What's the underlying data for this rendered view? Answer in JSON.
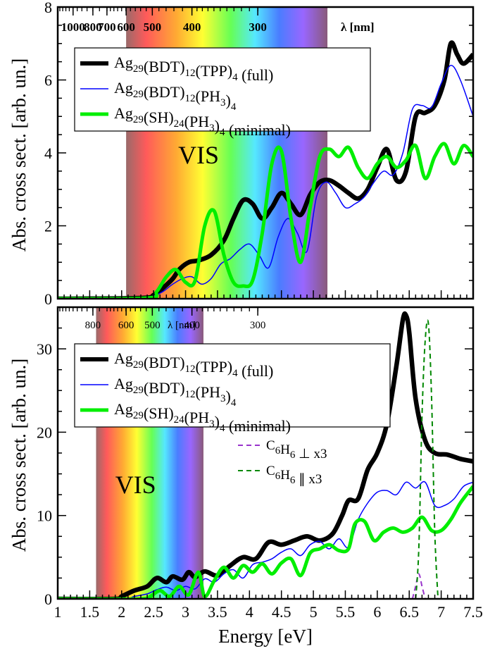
{
  "chart_data": [
    {
      "type": "line",
      "panel": "top",
      "xlim": [
        1,
        7.5
      ],
      "ylim": [
        0,
        8
      ],
      "ylabel": "Abs. cross sect. [arb. un.]",
      "yticks": [
        0,
        2,
        4,
        6,
        8
      ],
      "top_axis": {
        "label": "λ [nm]",
        "ticks": [
          {
            "label": "1000",
            "energy": 1.24
          },
          {
            "label": "800",
            "energy": 1.55
          },
          {
            "label": "700",
            "energy": 1.77
          },
          {
            "label": "600",
            "energy": 2.07
          },
          {
            "label": "500",
            "energy": 2.48
          },
          {
            "label": "400",
            "energy": 3.1
          },
          {
            "label": "300",
            "energy": 4.13
          }
        ]
      },
      "vis_band": {
        "label": "VIS",
        "start": 2.07,
        "end": 5.22
      },
      "legend": [
        {
          "text": "Ag",
          "sub": "29",
          "rest": [
            [
              "(BDT)",
              "12"
            ],
            [
              "(TPP)",
              "4"
            ]
          ],
          "suffix": "  (full)",
          "color": "#000000",
          "width": 6
        },
        {
          "text": "Ag",
          "sub": "29",
          "rest": [
            [
              "(BDT)",
              "12"
            ],
            [
              "(PH",
              "3"
            ],
            [
              ")",
              "4"
            ]
          ],
          "suffix": "",
          "color": "#0000ff",
          "width": 1.5
        },
        {
          "text": "Ag",
          "sub": "29",
          "rest": [
            [
              "(SH)",
              "24"
            ],
            [
              "(PH",
              "3"
            ],
            [
              ")",
              "4"
            ]
          ],
          "suffix": " (minimal)",
          "color": "#00ee00",
          "width": 5
        }
      ],
      "series": [
        {
          "name": "Ag29(BDT)12(TPP)4 (full)",
          "color": "#000000",
          "x": [
            1.0,
            2.3,
            2.5,
            2.65,
            2.8,
            2.9,
            3.05,
            3.2,
            3.4,
            3.6,
            3.75,
            3.9,
            4.05,
            4.2,
            4.35,
            4.5,
            4.65,
            4.8,
            4.95,
            5.1,
            5.25,
            5.4,
            5.55,
            5.7,
            5.85,
            6.0,
            6.15,
            6.3,
            6.45,
            6.6,
            6.75,
            6.9,
            7.05,
            7.15,
            7.25,
            7.35,
            7.5
          ],
          "y": [
            0.0,
            0.02,
            0.1,
            0.3,
            0.55,
            0.8,
            1.0,
            1.05,
            1.2,
            1.6,
            2.2,
            2.7,
            2.6,
            2.2,
            2.5,
            2.9,
            2.6,
            2.3,
            2.85,
            3.2,
            3.25,
            3.1,
            2.9,
            2.75,
            3.0,
            3.6,
            4.1,
            3.25,
            3.5,
            5.0,
            5.1,
            5.3,
            6.0,
            7.0,
            6.7,
            6.45,
            6.7
          ]
        },
        {
          "name": "Ag29(BDT)12(PH3)4",
          "color": "#0000ff",
          "x": [
            1.0,
            2.3,
            2.5,
            2.65,
            2.8,
            2.95,
            3.1,
            3.25,
            3.4,
            3.55,
            3.7,
            3.85,
            4.0,
            4.15,
            4.3,
            4.45,
            4.6,
            4.75,
            4.9,
            5.05,
            5.2,
            5.35,
            5.5,
            5.65,
            5.8,
            5.95,
            6.1,
            6.25,
            6.4,
            6.55,
            6.7,
            6.85,
            7.0,
            7.15,
            7.3,
            7.5
          ],
          "y": [
            0.0,
            0.02,
            0.08,
            0.2,
            0.4,
            0.55,
            0.6,
            0.4,
            0.55,
            0.95,
            1.1,
            1.35,
            1.5,
            1.2,
            0.85,
            1.7,
            2.2,
            1.8,
            1.3,
            2.8,
            3.2,
            2.9,
            2.5,
            2.6,
            2.8,
            3.2,
            3.5,
            3.4,
            4.0,
            5.2,
            5.3,
            5.25,
            5.9,
            6.4,
            6.0,
            5.0
          ]
        },
        {
          "name": "Ag29(SH)24(PH3)4 (minimal)",
          "color": "#00ee00",
          "x": [
            1.0,
            2.4,
            2.55,
            2.7,
            2.85,
            3.0,
            3.15,
            3.3,
            3.45,
            3.6,
            3.75,
            3.9,
            4.05,
            4.2,
            4.35,
            4.5,
            4.65,
            4.8,
            4.95,
            5.1,
            5.25,
            5.4,
            5.55,
            5.7,
            5.85,
            6.0,
            6.15,
            6.3,
            6.45,
            6.6,
            6.75,
            6.9,
            7.05,
            7.2,
            7.35,
            7.5
          ],
          "y": [
            0.0,
            0.02,
            0.2,
            0.6,
            0.8,
            0.45,
            0.5,
            2.0,
            2.4,
            1.2,
            0.45,
            0.35,
            0.5,
            1.8,
            3.7,
            4.05,
            2.2,
            1.0,
            2.5,
            3.9,
            4.1,
            3.9,
            4.15,
            3.6,
            3.3,
            3.7,
            3.9,
            3.6,
            3.8,
            4.2,
            3.3,
            3.9,
            4.25,
            3.7,
            4.2,
            3.9
          ]
        }
      ]
    },
    {
      "type": "line",
      "panel": "bottom",
      "xlim": [
        1,
        7.5
      ],
      "ylim": [
        0,
        35
      ],
      "xlabel": "Energy [eV]",
      "ylabel": "Abs. cross sect. [arb. un.]",
      "xticks": [
        1,
        1.5,
        2,
        2.5,
        3,
        3.5,
        4,
        4.5,
        5,
        5.5,
        6,
        6.5,
        7,
        7.5
      ],
      "xtick_labels": [
        "1",
        "1.5",
        "2",
        "2.5",
        "3",
        "3.5",
        "4",
        "4.5",
        "5",
        "5.5",
        "6",
        "6.5",
        "7",
        "7.5"
      ],
      "yticks": [
        0,
        10,
        20,
        30
      ],
      "top_axis": {
        "label": "λ [nm]",
        "ticks": [
          {
            "label": "800",
            "energy": 1.55
          },
          {
            "label": "600",
            "energy": 2.07
          },
          {
            "label": "500",
            "energy": 2.48
          },
          {
            "label": "400",
            "energy": 3.1
          },
          {
            "label": "300",
            "energy": 4.13
          }
        ]
      },
      "vis_band": {
        "label": "VIS",
        "start": 1.6,
        "end": 3.28
      },
      "legend": [
        {
          "text": "Ag",
          "sub": "29",
          "rest": [
            [
              "(BDT)",
              "12"
            ],
            [
              "(TPP)",
              "4"
            ]
          ],
          "suffix": "  (full)",
          "color": "#000000",
          "width": 6
        },
        {
          "text": "Ag",
          "sub": "29",
          "rest": [
            [
              "(BDT)",
              "12"
            ],
            [
              "(PH",
              "3"
            ],
            [
              ")",
              "4"
            ]
          ],
          "suffix": "",
          "color": "#0000ff",
          "width": 1.5
        },
        {
          "text": "Ag",
          "sub": "29",
          "rest": [
            [
              "(SH)",
              "24"
            ],
            [
              "(PH",
              "3"
            ],
            [
              ")",
              "4"
            ]
          ],
          "suffix": " (minimal)",
          "color": "#00ee00",
          "width": 5
        }
      ],
      "legend2": [
        {
          "text": "C",
          "sub": "6",
          "mid": "H",
          "sub2": "6",
          "suffix": " ⊥ x3",
          "color": "#9933cc"
        },
        {
          "text": "C",
          "sub": "6",
          "mid": "H",
          "sub2": "6",
          "suffix": " ∥ x3",
          "color": "#008800"
        }
      ],
      "series": [
        {
          "name": "Ag29(BDT)12(TPP)4 (full)",
          "color": "#000000",
          "x": [
            1.0,
            1.9,
            2.0,
            2.2,
            2.4,
            2.55,
            2.7,
            2.8,
            2.95,
            3.05,
            3.15,
            3.3,
            3.5,
            3.7,
            3.9,
            4.1,
            4.3,
            4.5,
            4.7,
            4.9,
            5.1,
            5.3,
            5.45,
            5.55,
            5.7,
            5.85,
            6.0,
            6.15,
            6.3,
            6.4,
            6.45,
            6.5,
            6.6,
            6.75,
            6.9,
            7.1,
            7.3,
            7.5
          ],
          "y": [
            0.0,
            0.0,
            0.3,
            1.0,
            1.5,
            2.5,
            2.0,
            2.7,
            2.3,
            3.2,
            2.6,
            3.3,
            2.8,
            4.0,
            5.0,
            4.8,
            6.8,
            6.5,
            7.0,
            7.5,
            7.0,
            7.8,
            10.0,
            11.8,
            12.0,
            15.5,
            17.5,
            21.0,
            28.0,
            33.5,
            34.0,
            32.0,
            24.0,
            19.0,
            17.5,
            17.3,
            16.8,
            16.5
          ]
        },
        {
          "name": "Ag29(BDT)12(PH3)4",
          "color": "#0000ff",
          "x": [
            1.0,
            2.0,
            2.2,
            2.4,
            2.55,
            2.7,
            2.85,
            3.0,
            3.15,
            3.3,
            3.45,
            3.6,
            3.75,
            3.9,
            4.05,
            4.2,
            4.35,
            4.5,
            4.65,
            4.8,
            4.95,
            5.1,
            5.25,
            5.4,
            5.55,
            5.7,
            5.85,
            6.0,
            6.15,
            6.3,
            6.45,
            6.6,
            6.75,
            6.9,
            7.05,
            7.2,
            7.35,
            7.5
          ],
          "y": [
            0.0,
            0.0,
            0.3,
            0.6,
            1.1,
            1.4,
            1.0,
            1.5,
            1.2,
            2.4,
            2.0,
            3.0,
            3.5,
            2.5,
            4.1,
            4.4,
            4.8,
            5.6,
            6.0,
            5.2,
            6.5,
            6.9,
            6.0,
            7.2,
            6.2,
            9.5,
            11.5,
            12.8,
            13.0,
            12.5,
            14.0,
            13.3,
            14.0,
            11.2,
            11.2,
            12.0,
            13.5,
            14.0
          ]
        },
        {
          "name": "Ag29(SH)24(PH3)4 (minimal)",
          "color": "#00ee00",
          "x": [
            1.0,
            2.3,
            2.45,
            2.6,
            2.75,
            2.9,
            3.05,
            3.2,
            3.3,
            3.45,
            3.6,
            3.75,
            3.9,
            4.05,
            4.2,
            4.35,
            4.5,
            4.65,
            4.8,
            4.95,
            5.1,
            5.25,
            5.4,
            5.55,
            5.65,
            5.8,
            5.95,
            6.1,
            6.25,
            6.4,
            6.55,
            6.7,
            6.85,
            7.0,
            7.15,
            7.3,
            7.5
          ],
          "y": [
            0.0,
            0.0,
            0.3,
            1.0,
            0.3,
            1.5,
            0.5,
            3.2,
            0.3,
            2.2,
            3.8,
            2.5,
            4.0,
            3.2,
            4.2,
            3.0,
            4.3,
            4.8,
            2.8,
            5.5,
            6.0,
            6.5,
            5.8,
            6.0,
            9.0,
            9.3,
            7.0,
            8.0,
            8.5,
            8.0,
            8.5,
            9.8,
            8.2,
            8.2,
            9.5,
            11.5,
            13.5
          ]
        },
        {
          "name": "C6H6 ⊥ x3",
          "color": "#9933cc",
          "dashed": true,
          "x": [
            6.55,
            6.6,
            6.65,
            6.7,
            6.75
          ],
          "y": [
            0.0,
            1.5,
            3.0,
            1.5,
            0.0
          ]
        },
        {
          "name": "C6H6 ∥ x3",
          "color": "#008800",
          "dashed": true,
          "x": [
            6.6,
            6.65,
            6.7,
            6.75,
            6.8,
            6.85,
            6.9,
            6.95
          ],
          "y": [
            0.0,
            6.0,
            22.0,
            31.0,
            33.0,
            24.0,
            8.0,
            0.0
          ]
        }
      ]
    }
  ]
}
